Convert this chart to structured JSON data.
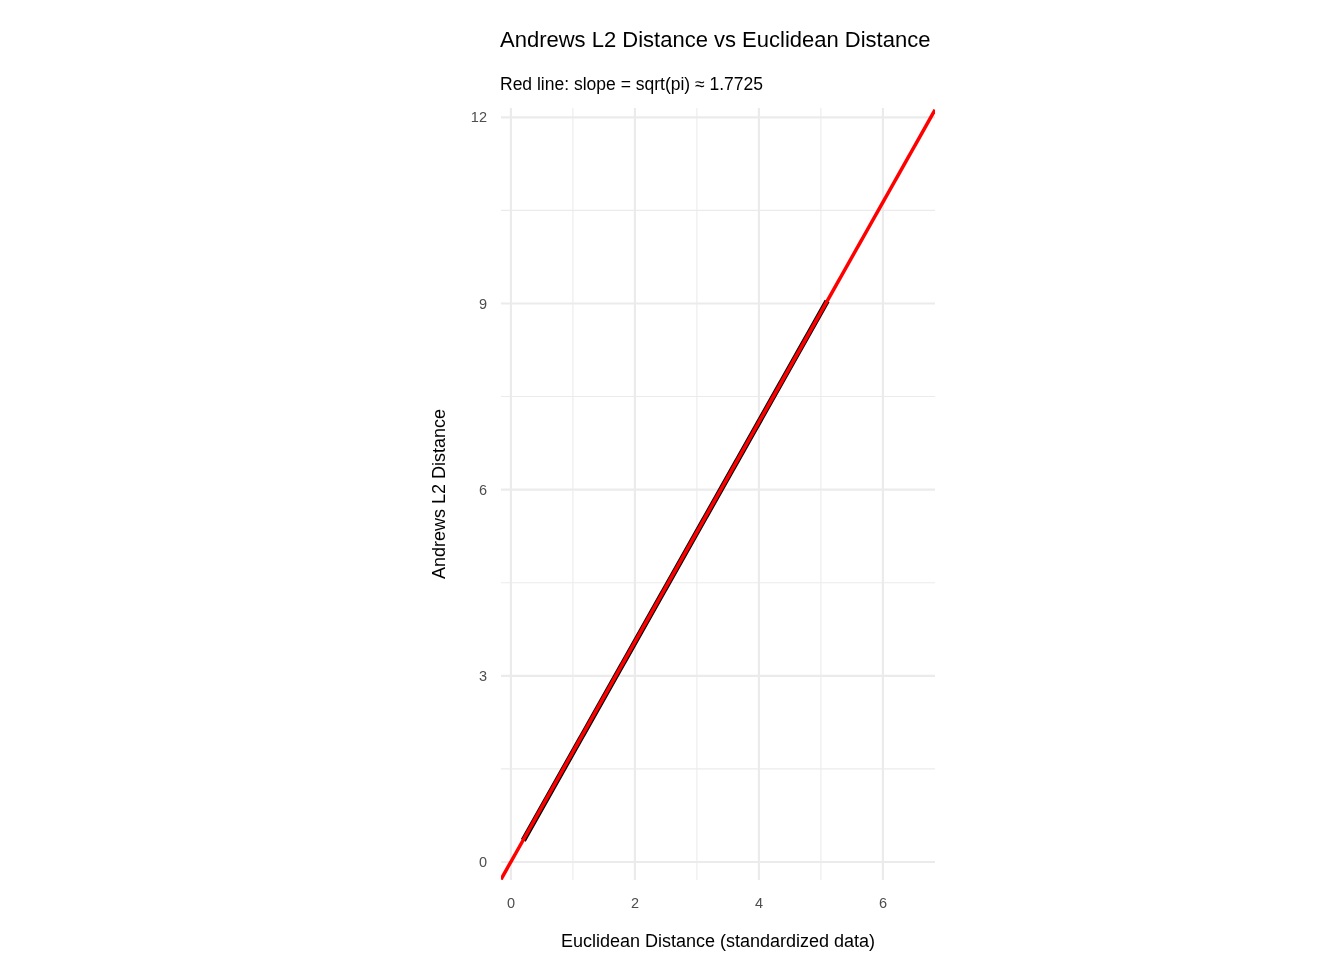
{
  "chart_data": {
    "type": "line",
    "title": "Andrews L2 Distance vs Euclidean Distance",
    "subtitle": "Red line: slope = sqrt(pi) ≈ 1.7725",
    "xlabel": "Euclidean Distance (standardized data)",
    "ylabel": "Andrews L2 Distance",
    "xlim": [
      -0.16,
      6.84
    ],
    "ylim": [
      -0.29,
      12.15
    ],
    "xticks": [
      0,
      {
        "value": 1,
        "label": null
      },
      2,
      {
        "value": 3,
        "label": null
      },
      4,
      {
        "value": 5,
        "label": null
      },
      6
    ],
    "yticks": [
      0,
      {
        "value": 1.5,
        "label": null
      },
      3,
      {
        "value": 4.5,
        "label": null
      },
      6,
      {
        "value": 7.5,
        "label": null
      },
      9,
      {
        "value": 10.5,
        "label": null
      },
      12
    ],
    "grid": true,
    "marker": "none",
    "line_style": "solid",
    "series": [
      {
        "color": "#000000",
        "x": [
          0.2,
          5.1
        ],
        "values": [
          0.35,
          9.04
        ]
      },
      {
        "color": "#ff0000",
        "x": [
          -0.16,
          6.84
        ],
        "values": [
          -0.28,
          12.12
        ]
      }
    ]
  }
}
